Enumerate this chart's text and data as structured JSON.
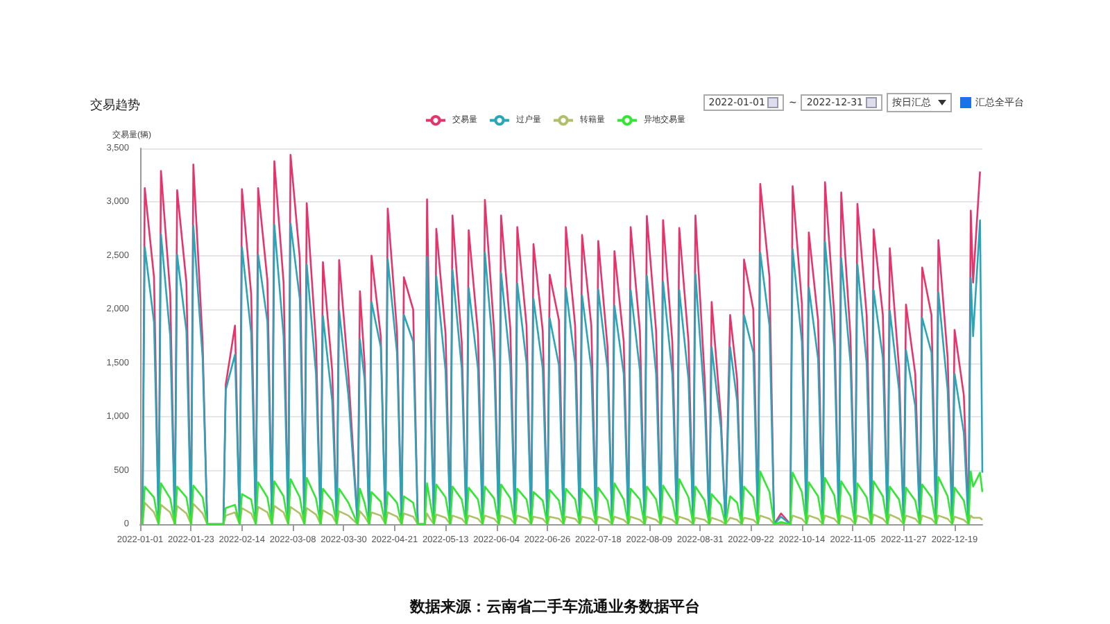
{
  "chart_data": {
    "type": "line",
    "title": "交易趋势",
    "ylabel": "交易量(辆)",
    "annotations": [
      "2022-01-01",
      "~",
      "2022-12-31",
      "按日汇总",
      "汇总全平台",
      "数据来源：云南省二手车流通业务数据平台"
    ],
    "legend": "top",
    "grid": "y",
    "marker": "none",
    "xlim": [
      "2022-01-01",
      "2022-12-31"
    ],
    "xticks": [
      "2022-01-01",
      "2022-01-23",
      "2022-02-14",
      "2022-03-08",
      "2022-03-30",
      "2022-04-21",
      "2022-05-13",
      "2022-06-04",
      "2022-06-26",
      "2022-07-18",
      "2022-08-09",
      "2022-08-31",
      "2022-09-22",
      "2022-10-14",
      "2022-11-05",
      "2022-11-27",
      "2022-12-19"
    ],
    "ylim": [
      0,
      3500
    ],
    "yticks": [
      0,
      {
        "value": 500,
        "label": "500"
      },
      {
        "value": 1000,
        "label": "1,000"
      },
      {
        "value": 1500,
        "label": "1,500"
      },
      {
        "value": 2000,
        "label": "2,000"
      },
      {
        "value": 2500,
        "label": "2,500"
      },
      {
        "value": 3000,
        "label": "3,000"
      },
      {
        "value": 3500,
        "label": "3,500"
      }
    ],
    "x": [
      "2022-01-02",
      "2022-01-03",
      "2022-01-07",
      "2022-01-09",
      "2022-01-10",
      "2022-01-14",
      "2022-01-16",
      "2022-01-17",
      "2022-01-21",
      "2022-01-23",
      "2022-01-24",
      "2022-01-28",
      "2022-01-30",
      "2022-02-06",
      "2022-02-07",
      "2022-02-11",
      "2022-02-13",
      "2022-02-14",
      "2022-02-18",
      "2022-02-20",
      "2022-02-21",
      "2022-02-25",
      "2022-02-27",
      "2022-02-28",
      "2022-03-04",
      "2022-03-06",
      "2022-03-07",
      "2022-03-11",
      "2022-03-13",
      "2022-03-14",
      "2022-03-18",
      "2022-03-20",
      "2022-03-21",
      "2022-03-25",
      "2022-03-27",
      "2022-03-28",
      "2022-04-01",
      "2022-04-05",
      "2022-04-06",
      "2022-04-08",
      "2022-04-10",
      "2022-04-11",
      "2022-04-15",
      "2022-04-17",
      "2022-04-18",
      "2022-04-22",
      "2022-04-24",
      "2022-04-25",
      "2022-04-29",
      "2022-05-01",
      "2022-05-04",
      "2022-05-05",
      "2022-05-06",
      "2022-05-08",
      "2022-05-09",
      "2022-05-13",
      "2022-05-15",
      "2022-05-16",
      "2022-05-20",
      "2022-05-22",
      "2022-05-23",
      "2022-05-27",
      "2022-05-29",
      "2022-05-30",
      "2022-06-03",
      "2022-06-05",
      "2022-06-06",
      "2022-06-10",
      "2022-06-12",
      "2022-06-13",
      "2022-06-17",
      "2022-06-19",
      "2022-06-20",
      "2022-06-24",
      "2022-06-26",
      "2022-06-27",
      "2022-07-01",
      "2022-07-03",
      "2022-07-04",
      "2022-07-08",
      "2022-07-10",
      "2022-07-11",
      "2022-07-15",
      "2022-07-17",
      "2022-07-18",
      "2022-07-22",
      "2022-07-24",
      "2022-07-25",
      "2022-07-29",
      "2022-07-31",
      "2022-08-01",
      "2022-08-05",
      "2022-08-07",
      "2022-08-08",
      "2022-08-12",
      "2022-08-14",
      "2022-08-15",
      "2022-08-19",
      "2022-08-21",
      "2022-08-22",
      "2022-08-26",
      "2022-08-28",
      "2022-08-29",
      "2022-09-02",
      "2022-09-04",
      "2022-09-05",
      "2022-09-09",
      "2022-09-11",
      "2022-09-13",
      "2022-09-16",
      "2022-09-18",
      "2022-09-19",
      "2022-09-23",
      "2022-09-25",
      "2022-09-26",
      "2022-09-30",
      "2022-10-02",
      "2022-10-05",
      "2022-10-09",
      "2022-10-10",
      "2022-10-14",
      "2022-10-16",
      "2022-10-17",
      "2022-10-21",
      "2022-10-23",
      "2022-10-24",
      "2022-10-28",
      "2022-10-30",
      "2022-10-31",
      "2022-11-04",
      "2022-11-06",
      "2022-11-07",
      "2022-11-11",
      "2022-11-13",
      "2022-11-14",
      "2022-11-18",
      "2022-11-20",
      "2022-11-21",
      "2022-11-25",
      "2022-11-27",
      "2022-11-28",
      "2022-12-02",
      "2022-12-04",
      "2022-12-05",
      "2022-12-09",
      "2022-12-11",
      "2022-12-12",
      "2022-12-16",
      "2022-12-18",
      "2022-12-19",
      "2022-12-23",
      "2022-12-25",
      "2022-12-26",
      "2022-12-27",
      "2022-12-30",
      "2022-12-31"
    ],
    "series": [
      {
        "name": "交易量",
        "color": "#e6336b",
        "values": [
          0,
          3130,
          2300,
          0,
          3290,
          2150,
          0,
          3110,
          2250,
          0,
          3350,
          1700,
          0,
          0,
          1300,
          1850,
          0,
          3120,
          2140,
          0,
          3130,
          2270,
          0,
          3380,
          2250,
          0,
          3440,
          2480,
          0,
          2990,
          1700,
          0,
          2440,
          1430,
          0,
          2460,
          1400,
          0,
          2170,
          1500,
          0,
          2500,
          1750,
          0,
          2940,
          1800,
          0,
          2300,
          2000,
          0,
          0,
          3025,
          1800,
          0,
          2750,
          1775,
          0,
          2875,
          1690,
          0,
          2737,
          1780,
          0,
          3020,
          1800,
          0,
          2875,
          1820,
          0,
          2767,
          1850,
          0,
          2608,
          1800,
          0,
          2323,
          1900,
          0,
          2767,
          1850,
          0,
          2694,
          1850,
          0,
          2638,
          1650,
          0,
          2543,
          1700,
          0,
          2767,
          1800,
          0,
          2870,
          1800,
          0,
          2832,
          1700,
          0,
          2759,
          1700,
          0,
          2875,
          1350,
          0,
          2070,
          1000,
          0,
          1948,
          1350,
          0,
          2465,
          2000,
          0,
          3168,
          2300,
          0,
          100,
          0,
          3147,
          2055,
          0,
          2716,
          1900,
          0,
          3185,
          1950,
          0,
          3090,
          1750,
          0,
          2983,
          1950,
          0,
          2746,
          1950,
          0,
          2570,
          1450,
          0,
          2045,
          1400,
          0,
          2390,
          1950,
          0,
          2645,
          1550,
          0,
          1810,
          1200,
          0,
          2920,
          2250,
          3285,
          null
        ]
      },
      {
        "name": "过户量",
        "color": "#2aa5b8",
        "values": [
          0,
          2580,
          1880,
          0,
          2700,
          1750,
          0,
          2510,
          1800,
          0,
          2780,
          1550,
          0,
          0,
          1250,
          1580,
          0,
          2580,
          1780,
          0,
          2510,
          1890,
          0,
          2790,
          1750,
          0,
          2800,
          2100,
          0,
          2420,
          1400,
          0,
          1940,
          1150,
          0,
          1990,
          1200,
          0,
          1720,
          1350,
          0,
          2070,
          1650,
          0,
          2470,
          1600,
          0,
          1950,
          1700,
          0,
          0,
          2490,
          1500,
          0,
          2310,
          1430,
          0,
          2370,
          1450,
          0,
          2200,
          1450,
          0,
          2530,
          1500,
          0,
          2340,
          1480,
          0,
          2240,
          1500,
          0,
          2100,
          1450,
          0,
          1920,
          1480,
          0,
          2200,
          1500,
          0,
          2130,
          1450,
          0,
          2185,
          1450,
          0,
          2035,
          1400,
          0,
          2180,
          1430,
          0,
          2315,
          1400,
          0,
          2260,
          1400,
          0,
          2180,
          1350,
          0,
          2330,
          1120,
          0,
          1650,
          900,
          0,
          1650,
          1150,
          0,
          1948,
          1600,
          0,
          2530,
          1850,
          0,
          70,
          0,
          2560,
          1700,
          0,
          2207,
          1540,
          0,
          2630,
          1650,
          0,
          2480,
          1500,
          0,
          2420,
          1500,
          0,
          2180,
          1550,
          0,
          1990,
          1250,
          0,
          1620,
          1100,
          0,
          1920,
          1600,
          0,
          2160,
          1250,
          0,
          1400,
          850,
          0,
          2290,
          1750,
          2830,
          480
        ]
      },
      {
        "name": "转籍量",
        "color": "#b0bf6a",
        "values": [
          0,
          200,
          110,
          0,
          180,
          110,
          0,
          170,
          100,
          0,
          190,
          100,
          0,
          0,
          80,
          110,
          0,
          150,
          100,
          0,
          160,
          110,
          0,
          170,
          110,
          0,
          160,
          100,
          0,
          150,
          90,
          0,
          130,
          80,
          0,
          120,
          80,
          0,
          120,
          70,
          0,
          110,
          80,
          0,
          110,
          70,
          0,
          100,
          70,
          0,
          0,
          100,
          60,
          0,
          90,
          60,
          0,
          80,
          50,
          0,
          80,
          50,
          0,
          80,
          50,
          0,
          80,
          50,
          0,
          80,
          50,
          0,
          70,
          50,
          0,
          70,
          50,
          0,
          70,
          50,
          0,
          70,
          50,
          0,
          70,
          40,
          0,
          70,
          40,
          0,
          70,
          40,
          0,
          70,
          40,
          0,
          70,
          40,
          0,
          70,
          40,
          0,
          60,
          40,
          0,
          60,
          30,
          0,
          60,
          40,
          0,
          60,
          40,
          0,
          80,
          50,
          0,
          10,
          0,
          80,
          50,
          0,
          80,
          50,
          0,
          80,
          50,
          0,
          80,
          50,
          0,
          80,
          50,
          0,
          90,
          50,
          0,
          90,
          50,
          0,
          80,
          50,
          0,
          80,
          50,
          0,
          80,
          50,
          0,
          70,
          40,
          0,
          80,
          60,
          60,
          40
        ]
      },
      {
        "name": "异地交易量",
        "color": "#33e633",
        "values": [
          0,
          350,
          250,
          0,
          380,
          240,
          0,
          350,
          250,
          0,
          360,
          250,
          0,
          0,
          150,
          180,
          0,
          280,
          230,
          0,
          390,
          250,
          0,
          400,
          260,
          0,
          420,
          250,
          0,
          430,
          240,
          0,
          330,
          220,
          0,
          330,
          200,
          0,
          330,
          200,
          0,
          300,
          210,
          0,
          300,
          200,
          0,
          260,
          200,
          0,
          0,
          380,
          250,
          0,
          370,
          250,
          0,
          350,
          230,
          0,
          340,
          230,
          0,
          350,
          240,
          0,
          370,
          240,
          0,
          330,
          230,
          0,
          300,
          220,
          0,
          320,
          220,
          0,
          330,
          230,
          0,
          330,
          230,
          0,
          340,
          220,
          0,
          380,
          230,
          0,
          330,
          230,
          0,
          350,
          230,
          0,
          360,
          220,
          0,
          420,
          250,
          0,
          350,
          220,
          0,
          280,
          180,
          0,
          260,
          200,
          0,
          350,
          250,
          0,
          490,
          300,
          0,
          20,
          0,
          480,
          300,
          0,
          390,
          260,
          0,
          430,
          270,
          0,
          400,
          260,
          0,
          380,
          250,
          0,
          400,
          260,
          0,
          350,
          230,
          0,
          340,
          220,
          0,
          370,
          250,
          0,
          440,
          260,
          0,
          340,
          220,
          0,
          490,
          350,
          480,
          300
        ]
      }
    ]
  }
}
